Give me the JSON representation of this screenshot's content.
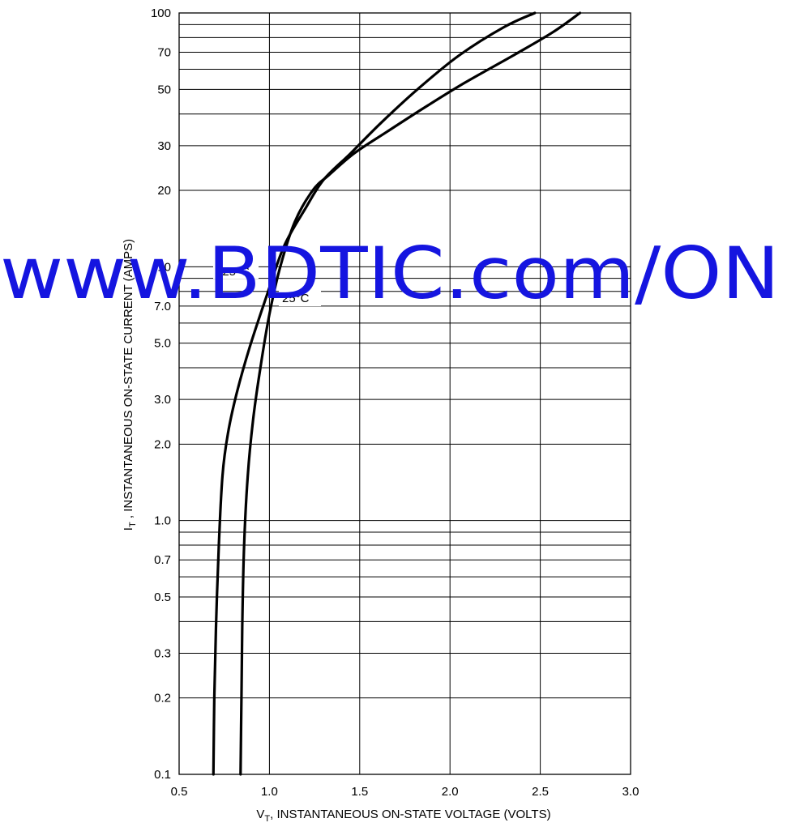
{
  "chart_data": {
    "type": "line",
    "title": "",
    "xlabel": "V",
    "xlabel_sub": "T",
    "xlabel_rest": ", INSTANTANEOUS ON-STATE VOLTAGE (VOLTS)",
    "ylabel": "I",
    "ylabel_sub": "T",
    "ylabel_rest": " , INSTANTANEOUS ON-STATE CURRENT (AMPS)",
    "xlim": [
      0.5,
      3.0
    ],
    "ylim": [
      0.1,
      100
    ],
    "y_scale": "log",
    "grid": true,
    "x_ticks": [
      "0.5",
      "1.0",
      "1.5",
      "2.0",
      "2.5",
      "3.0"
    ],
    "x_tick_values": [
      0.5,
      1.0,
      1.5,
      2.0,
      2.5,
      3.0
    ],
    "y_ticks": [
      "0.1",
      "0.2",
      "0.3",
      "0.5",
      "0.7",
      "1.0",
      "2.0",
      "3.0",
      "5.0",
      "7.0",
      "10",
      "20",
      "30",
      "50",
      "70",
      "100"
    ],
    "y_tick_values": [
      0.1,
      0.2,
      0.3,
      0.5,
      0.7,
      1.0,
      2.0,
      3.0,
      5.0,
      7.0,
      10,
      20,
      30,
      50,
      70,
      100
    ],
    "y_gridlines": [
      0.2,
      0.3,
      0.4,
      0.5,
      0.6,
      0.7,
      0.8,
      0.9,
      1.0,
      2.0,
      3.0,
      4.0,
      5.0,
      6.0,
      7.0,
      8.0,
      9.0,
      10,
      20,
      30,
      40,
      50,
      60,
      70,
      80,
      90
    ],
    "series": [
      {
        "name": "125°C",
        "x": [
          0.69,
          0.695,
          0.705,
          0.72,
          0.74,
          0.77,
          0.82,
          0.89,
          0.98,
          1.08,
          1.2,
          1.3,
          1.45,
          1.62,
          1.82,
          2.05,
          2.3,
          2.47
        ],
        "y": [
          0.1,
          0.2,
          0.4,
          0.8,
          1.5,
          2.2,
          3.2,
          4.8,
          7.5,
          12,
          17,
          22,
          28,
          37,
          50,
          68,
          88,
          100
        ]
      },
      {
        "name": "25°C",
        "x": [
          0.84,
          0.845,
          0.85,
          0.86,
          0.88,
          0.91,
          0.95,
          1.0,
          1.06,
          1.14,
          1.24,
          1.33,
          1.47,
          1.65,
          1.85,
          2.08,
          2.35,
          2.57,
          2.72
        ],
        "y": [
          0.1,
          0.2,
          0.4,
          0.8,
          1.5,
          2.5,
          4.0,
          6.5,
          10,
          15,
          20,
          23,
          28,
          34,
          42,
          53,
          68,
          84,
          100
        ]
      }
    ],
    "curve_labels": [
      "125°C",
      "25°C"
    ],
    "colors": {
      "curve": "#000000",
      "grid": "#000000",
      "watermark": "#1515e0"
    }
  },
  "watermark": "www.BDTIC.com/ON"
}
